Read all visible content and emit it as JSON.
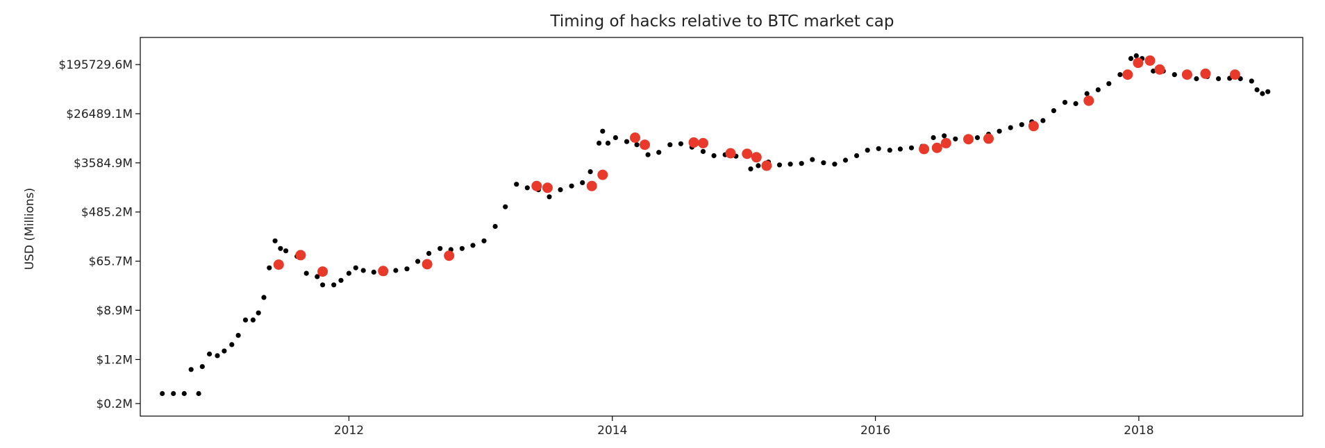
{
  "chart_data": {
    "type": "scatter",
    "title": "Timing of hacks relative to BTC market cap",
    "xlabel": "",
    "ylabel": "USD (Millions)",
    "x_axis": {
      "type": "date",
      "range": [
        "2010-06-01",
        "2019-04-01"
      ],
      "ticks": [
        "2012-01-01",
        "2014-01-01",
        "2016-01-01",
        "2018-01-01"
      ],
      "tick_labels": [
        "2012",
        "2014",
        "2016",
        "2018"
      ]
    },
    "y_axis": {
      "scale": "log",
      "ticks": [
        0.2,
        1.2,
        8.9,
        65.7,
        485.2,
        3584.9,
        26489.1,
        195729.6
      ],
      "tick_labels": [
        "$0.2M",
        "$1.2M",
        "$8.9M",
        "$65.7M",
        "$485.2M",
        "$3584.9M",
        "$26489.1M",
        "$195729.6M"
      ],
      "range_millions": [
        0.12,
        590000
      ]
    },
    "grid": false,
    "legend": "none",
    "colors": {
      "market_cap": "#000000",
      "hacks": "#e8392a"
    },
    "series": [
      {
        "role": "market_cap",
        "marker": "small-dot",
        "points": [
          [
            "2010-08-01",
            0.3
          ],
          [
            "2010-09-01",
            0.3
          ],
          [
            "2010-10-01",
            0.3
          ],
          [
            "2010-10-20",
            0.8
          ],
          [
            "2010-11-10",
            0.3
          ],
          [
            "2010-11-20",
            0.9
          ],
          [
            "2010-12-10",
            1.5
          ],
          [
            "2011-01-01",
            1.4
          ],
          [
            "2011-01-20",
            1.7
          ],
          [
            "2011-02-10",
            2.2
          ],
          [
            "2011-02-28",
            3.2
          ],
          [
            "2011-03-20",
            6.0
          ],
          [
            "2011-04-10",
            6.0
          ],
          [
            "2011-04-25",
            8.0
          ],
          [
            "2011-05-10",
            15.0
          ],
          [
            "2011-05-25",
            50.0
          ],
          [
            "2011-06-10",
            150.0
          ],
          [
            "2011-06-25",
            110.0
          ],
          [
            "2011-07-10",
            100.0
          ],
          [
            "2011-08-10",
            80.0
          ],
          [
            "2011-09-05",
            40.0
          ],
          [
            "2011-10-05",
            35.0
          ],
          [
            "2011-10-20",
            25.0
          ],
          [
            "2011-11-20",
            25.0
          ],
          [
            "2011-12-10",
            30.0
          ],
          [
            "2012-01-01",
            40.0
          ],
          [
            "2012-01-20",
            50.0
          ],
          [
            "2012-02-10",
            45.0
          ],
          [
            "2012-03-10",
            42.0
          ],
          [
            "2012-04-10",
            40.0
          ],
          [
            "2012-05-10",
            45.0
          ],
          [
            "2012-06-10",
            48.0
          ],
          [
            "2012-07-10",
            65.0
          ],
          [
            "2012-08-10",
            90.0
          ],
          [
            "2012-09-10",
            110.0
          ],
          [
            "2012-10-10",
            105.0
          ],
          [
            "2012-11-10",
            110.0
          ],
          [
            "2012-12-10",
            125.0
          ],
          [
            "2013-01-10",
            150.0
          ],
          [
            "2013-02-10",
            270.0
          ],
          [
            "2013-03-10",
            600.0
          ],
          [
            "2013-04-10",
            1500.0
          ],
          [
            "2013-05-10",
            1300.0
          ],
          [
            "2013-06-10",
            1200.0
          ],
          [
            "2013-07-10",
            900.0
          ],
          [
            "2013-08-10",
            1200.0
          ],
          [
            "2013-09-10",
            1400.0
          ],
          [
            "2013-10-10",
            1600.0
          ],
          [
            "2013-11-01",
            2500.0
          ],
          [
            "2013-11-25",
            8000.0
          ],
          [
            "2013-12-05",
            13000.0
          ],
          [
            "2013-12-20",
            8000.0
          ],
          [
            "2014-01-10",
            10000.0
          ],
          [
            "2014-02-10",
            8500.0
          ],
          [
            "2014-03-10",
            7500.0
          ],
          [
            "2014-04-10",
            5000.0
          ],
          [
            "2014-05-10",
            5500.0
          ],
          [
            "2014-06-10",
            7500.0
          ],
          [
            "2014-07-10",
            7800.0
          ],
          [
            "2014-08-10",
            6800.0
          ],
          [
            "2014-09-10",
            5700.0
          ],
          [
            "2014-10-10",
            4800.0
          ],
          [
            "2014-11-10",
            5000.0
          ],
          [
            "2014-12-10",
            4700.0
          ],
          [
            "2015-01-20",
            2800.0
          ],
          [
            "2015-02-10",
            3200.0
          ],
          [
            "2015-03-10",
            3700.0
          ],
          [
            "2015-04-10",
            3300.0
          ],
          [
            "2015-05-10",
            3400.0
          ],
          [
            "2015-06-10",
            3500.0
          ],
          [
            "2015-07-10",
            4100.0
          ],
          [
            "2015-08-10",
            3600.0
          ],
          [
            "2015-09-10",
            3400.0
          ],
          [
            "2015-10-10",
            4000.0
          ],
          [
            "2015-11-10",
            4800.0
          ],
          [
            "2015-12-10",
            6000.0
          ],
          [
            "2016-01-10",
            6400.0
          ],
          [
            "2016-02-10",
            6000.0
          ],
          [
            "2016-03-10",
            6300.0
          ],
          [
            "2016-04-10",
            6600.0
          ],
          [
            "2016-05-10",
            7000.0
          ],
          [
            "2016-06-10",
            10000.0
          ],
          [
            "2016-07-10",
            10800.0
          ],
          [
            "2016-08-10",
            9500.0
          ],
          [
            "2016-09-10",
            9700.0
          ],
          [
            "2016-10-10",
            10000.0
          ],
          [
            "2016-11-10",
            11500.0
          ],
          [
            "2016-12-10",
            13000.0
          ],
          [
            "2017-01-10",
            15000.0
          ],
          [
            "2017-02-10",
            17000.0
          ],
          [
            "2017-03-10",
            19000.0
          ],
          [
            "2017-04-10",
            20000.0
          ],
          [
            "2017-05-10",
            30000.0
          ],
          [
            "2017-06-10",
            42000.0
          ],
          [
            "2017-07-10",
            40000.0
          ],
          [
            "2017-08-10",
            60000.0
          ],
          [
            "2017-09-10",
            70000.0
          ],
          [
            "2017-10-10",
            90000.0
          ],
          [
            "2017-11-10",
            130000.0
          ],
          [
            "2017-12-10",
            250000.0
          ],
          [
            "2017-12-25",
            280000.0
          ],
          [
            "2018-01-10",
            250000.0
          ],
          [
            "2018-02-10",
            150000.0
          ],
          [
            "2018-03-10",
            150000.0
          ],
          [
            "2018-04-10",
            130000.0
          ],
          [
            "2018-05-10",
            140000.0
          ],
          [
            "2018-06-10",
            110000.0
          ],
          [
            "2018-07-10",
            120000.0
          ],
          [
            "2018-08-10",
            110000.0
          ],
          [
            "2018-09-10",
            112000.0
          ],
          [
            "2018-10-10",
            110000.0
          ],
          [
            "2018-11-10",
            100000.0
          ],
          [
            "2018-11-25",
            70000.0
          ],
          [
            "2018-12-10",
            60000.0
          ],
          [
            "2018-12-25",
            65000.0
          ]
        ]
      },
      {
        "role": "hacks",
        "marker": "large-circle",
        "points": [
          [
            "2011-06-20",
            57.0
          ],
          [
            "2011-08-20",
            84.0
          ],
          [
            "2011-10-20",
            43.0
          ],
          [
            "2012-04-05",
            44.0
          ],
          [
            "2012-08-05",
            58.0
          ],
          [
            "2012-10-05",
            82.0
          ],
          [
            "2013-06-05",
            1400.0
          ],
          [
            "2013-07-05",
            1300.0
          ],
          [
            "2013-11-05",
            1400.0
          ],
          [
            "2013-12-05",
            2200.0
          ],
          [
            "2014-03-05",
            10000.0
          ],
          [
            "2014-04-01",
            7500.0
          ],
          [
            "2014-08-15",
            8200.0
          ],
          [
            "2014-09-10",
            8000.0
          ],
          [
            "2014-11-25",
            5300.0
          ],
          [
            "2015-01-10",
            5200.0
          ],
          [
            "2015-02-05",
            4500.0
          ],
          [
            "2015-03-05",
            3200.0
          ],
          [
            "2016-05-15",
            6300.0
          ],
          [
            "2016-06-20",
            6600.0
          ],
          [
            "2016-07-15",
            8000.0
          ],
          [
            "2016-09-15",
            9400.0
          ],
          [
            "2016-11-10",
            9600.0
          ],
          [
            "2017-03-15",
            16000.0
          ],
          [
            "2017-08-15",
            45000.0
          ],
          [
            "2017-12-01",
            130000.0
          ],
          [
            "2017-12-30",
            210000.0
          ],
          [
            "2018-02-01",
            230000.0
          ],
          [
            "2018-02-28",
            160000.0
          ],
          [
            "2018-05-15",
            130000.0
          ],
          [
            "2018-07-05",
            135000.0
          ],
          [
            "2018-09-25",
            130000.0
          ]
        ]
      }
    ]
  }
}
